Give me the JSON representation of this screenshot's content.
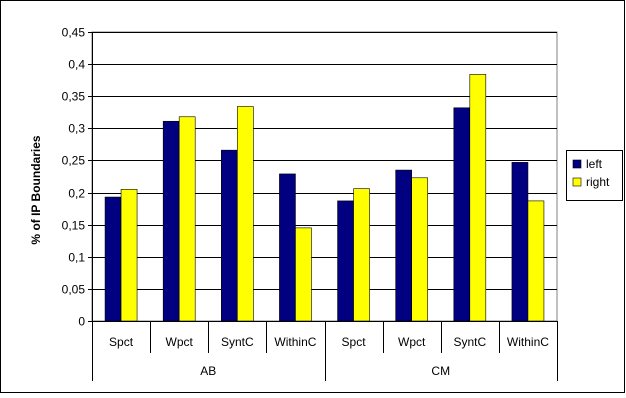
{
  "chart_data": {
    "type": "bar",
    "title": "",
    "ylabel": "% of IP Boundaries",
    "xlabel": "",
    "ylim": [
      0,
      0.45
    ],
    "ytick_step": 0.05,
    "yticks": [
      "0",
      "0,05",
      "0,1",
      "0,15",
      "0,2",
      "0,25",
      "0,3",
      "0,35",
      "0,4",
      "0,45"
    ],
    "grid": true,
    "legend_position": "right",
    "groups": [
      {
        "label": "AB",
        "categories": [
          "Spct",
          "Wpct",
          "SyntC",
          "WithinC"
        ]
      },
      {
        "label": "CM",
        "categories": [
          "Spct",
          "Wpct",
          "SyntC",
          "WithinC"
        ]
      }
    ],
    "series": [
      {
        "name": "left",
        "color": "#000080",
        "values": [
          0.193,
          0.311,
          0.266,
          0.229,
          0.187,
          0.235,
          0.332,
          0.247
        ]
      },
      {
        "name": "right",
        "color": "#ffff00",
        "values": [
          0.205,
          0.318,
          0.334,
          0.145,
          0.206,
          0.223,
          0.384,
          0.187
        ]
      }
    ]
  }
}
